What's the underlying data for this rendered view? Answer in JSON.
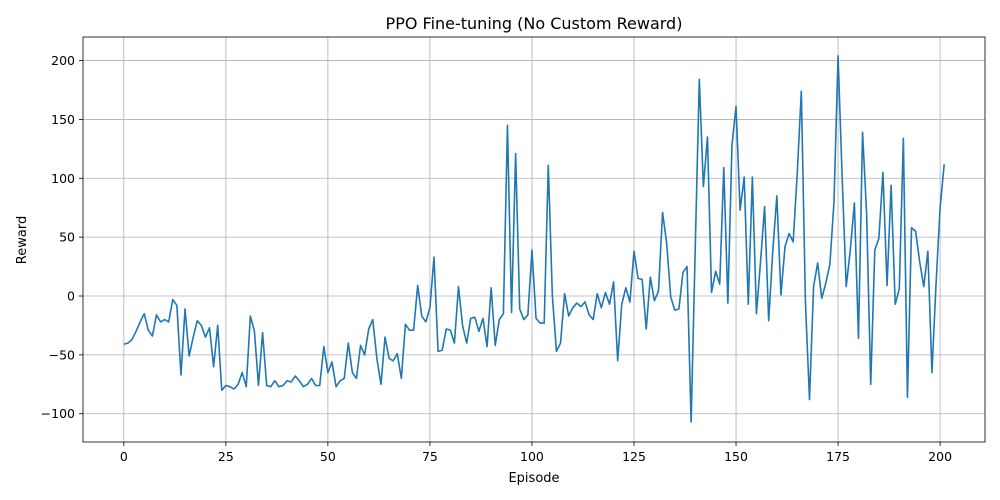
{
  "chart_data": {
    "type": "line",
    "title": "PPO Fine-tuning (No Custom Reward)",
    "xlabel": "Episode",
    "ylabel": "Reward",
    "xlim": [
      -10,
      211
    ],
    "ylim": [
      -124,
      220
    ],
    "xticks": [
      0,
      25,
      50,
      75,
      100,
      125,
      150,
      175,
      200
    ],
    "yticks": [
      -100,
      -50,
      0,
      50,
      100,
      150,
      200
    ],
    "grid": true,
    "line_color": "#1f77b4",
    "series": [
      {
        "x_start": 0,
        "values": [
          -41,
          -40,
          -37,
          -30,
          -22,
          -15,
          -29,
          -34,
          -16,
          -22,
          -20,
          -22,
          -3,
          -8,
          -67,
          -11,
          -51,
          -35,
          -21,
          -25,
          -35,
          -27,
          -60,
          -25,
          -80,
          -76,
          -77,
          -79,
          -75,
          -65,
          -77,
          -17,
          -30,
          -76,
          -31,
          -76,
          -77,
          -72,
          -77,
          -76,
          -72,
          -73,
          -68,
          -72,
          -77,
          -75,
          -70,
          -76,
          -76,
          -43,
          -65,
          -56,
          -77,
          -72,
          -70,
          -40,
          -65,
          -70,
          -42,
          -50,
          -28,
          -20,
          -53,
          -75,
          -35,
          -53,
          -55,
          -49,
          -70,
          -24,
          -29,
          -29,
          9,
          -17,
          -22,
          -10,
          33,
          -47,
          -46,
          -28,
          -29,
          -40,
          8,
          -25,
          -40,
          -19,
          -18,
          -30,
          -19,
          -43,
          7,
          -42,
          -20,
          -15,
          145,
          -14,
          121,
          -11,
          -20,
          -16,
          39,
          -19,
          -23,
          -23,
          111,
          0,
          -47,
          -40,
          2,
          -17,
          -10,
          -6,
          -9,
          -5,
          -16,
          -20,
          2,
          -10,
          3,
          -7,
          12,
          -55,
          -7,
          7,
          -5,
          38,
          15,
          14,
          -28,
          16,
          -4,
          4,
          71,
          45,
          -1,
          -12,
          -11,
          20,
          25,
          -107,
          40,
          184,
          93,
          135,
          3,
          21,
          10,
          109,
          -6,
          128,
          161,
          73,
          101,
          -7,
          101,
          -15,
          29,
          76,
          -21,
          38,
          85,
          1,
          42,
          53,
          46,
          104,
          174,
          -5,
          -88,
          8,
          28,
          -2,
          11,
          27,
          80,
          204,
          101,
          8,
          39,
          79,
          -36,
          139,
          70,
          -75,
          39,
          49,
          105,
          9,
          94,
          -7,
          6,
          134,
          -86,
          58,
          55,
          29,
          8,
          38,
          -65,
          10,
          75,
          112
        ]
      }
    ]
  }
}
